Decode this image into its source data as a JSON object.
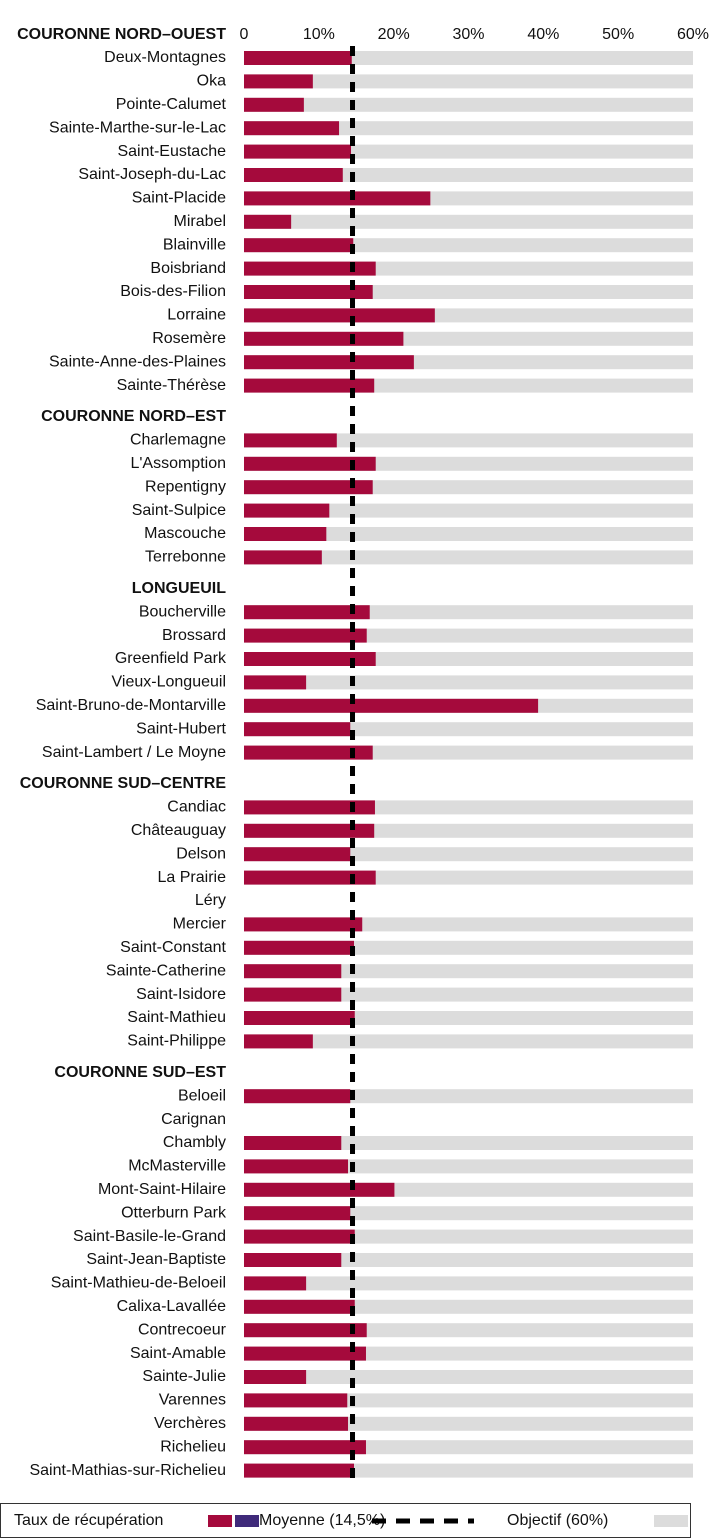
{
  "chart_data": {
    "type": "bar",
    "orientation": "horizontal",
    "xlim": [
      0,
      60
    ],
    "xticks": [
      0,
      {
        "value": 10,
        "label": "10%"
      },
      {
        "value": 20,
        "label": "20%"
      },
      {
        "value": 30,
        "label": "30%"
      },
      {
        "value": 40,
        "label": "40%"
      },
      {
        "value": 50,
        "label": "50%"
      },
      {
        "value": 60,
        "label": "60%"
      }
    ],
    "color": "#a50a3c",
    "objective_color": "#dcdcdc",
    "average": 14.5,
    "objective": 60,
    "groups": [
      {
        "name": "COURONNE NORD–OUEST",
        "categories": [
          "Deux-Montagnes",
          "Oka",
          "Pointe-Calumet",
          "Sainte-Marthe-sur-le-Lac",
          "Saint-Eustache",
          "Saint-Joseph-du-Lac",
          "Saint-Placide",
          "Mirabel",
          "Blainville",
          "Boisbriand",
          "Bois-des-Filion",
          "Lorraine",
          "Rosemère",
          "Sainte-Anne-des-Plaines",
          "Sainte-Thérèse"
        ],
        "values": [
          14.4,
          9.2,
          8.0,
          12.7,
          14.3,
          13.2,
          24.9,
          6.3,
          14.6,
          17.6,
          17.2,
          25.5,
          21.3,
          22.7,
          17.4
        ]
      },
      {
        "name": "COURONNE NORD–EST",
        "categories": [
          "Charlemagne",
          "L'Assomption",
          "Repentigny",
          "Saint-Sulpice",
          "Mascouche",
          "Terrebonne"
        ],
        "values": [
          12.4,
          17.6,
          17.2,
          11.4,
          11.0,
          10.4
        ]
      },
      {
        "name": "LONGUEUIL",
        "categories": [
          "Boucherville",
          "Brossard",
          "Greenfield Park",
          "Vieux-Longueuil",
          "Saint-Bruno-de-Montarville",
          "Saint-Hubert",
          "Saint-Lambert / Le Moyne"
        ],
        "values": [
          16.8,
          16.4,
          17.6,
          8.3,
          39.3,
          14.2,
          17.2
        ]
      },
      {
        "name": "COURONNE SUD–CENTRE",
        "categories": [
          "Candiac",
          "Châteauguay",
          "Delson",
          "La Prairie",
          "Léry",
          "Mercier",
          "Saint-Constant",
          "Sainte-Catherine",
          "Saint-Isidore",
          "Saint-Mathieu",
          "Saint-Philippe"
        ],
        "values": [
          17.5,
          17.4,
          14.2,
          17.6,
          null,
          15.8,
          14.7,
          13.0,
          13.0,
          14.8,
          9.2
        ]
      },
      {
        "name": "COURONNE SUD–EST",
        "categories": [
          "Beloeil",
          "Carignan",
          "Chambly",
          "McMasterville",
          "Mont-Saint-Hilaire",
          "Otterburn Park",
          "Saint-Basile-le-Grand",
          "Saint-Jean-Baptiste",
          "Saint-Mathieu-de-Beloeil",
          "Calixa-Lavallée",
          "Contrecoeur",
          "Saint-Amable",
          "Sainte-Julie",
          "Varennes",
          "Verchères",
          "Richelieu",
          "Saint-Mathias-sur-Richelieu"
        ],
        "values": [
          14.2,
          null,
          13.0,
          13.9,
          20.1,
          14.2,
          14.8,
          13.0,
          8.3,
          14.8,
          16.4,
          16.3,
          8.3,
          13.8,
          13.9,
          16.3,
          14.7
        ]
      }
    ],
    "legend": {
      "items": [
        {
          "label": "Taux de récupération",
          "colors": [
            "#a50a3c",
            "#3f2a7a"
          ]
        },
        {
          "label": "Moyenne (14,5%)"
        },
        {
          "label": "Objectif (60%)"
        }
      ]
    }
  }
}
